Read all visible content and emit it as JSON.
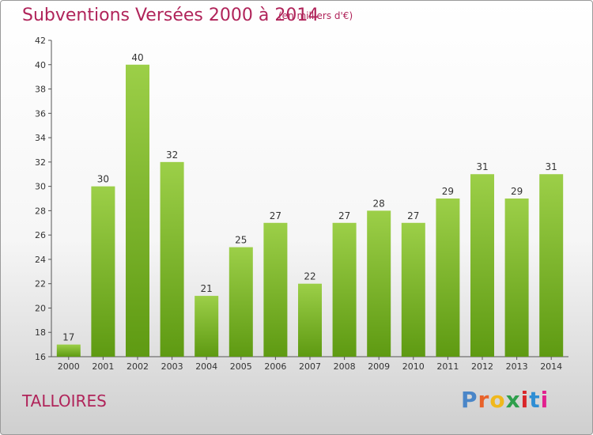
{
  "header": {
    "title": "Subventions Versées 2000 à 2014",
    "unit_note": "(en milliers d'€)"
  },
  "footer": {
    "town": "TALLOIRES",
    "brand": "Proxiti",
    "brand_colors": [
      "#4a86c8",
      "#e8622a",
      "#f0b81c",
      "#2e9f4c",
      "#d9252a",
      "#2f8ed4",
      "#e2208e"
    ]
  },
  "chart_data": {
    "type": "bar",
    "title": "Subventions Versées 2000 à 2014",
    "subtitle": "(en milliers d'€)",
    "xlabel": "",
    "ylabel": "",
    "categories": [
      "2000",
      "2001",
      "2002",
      "2003",
      "2004",
      "2005",
      "2006",
      "2007",
      "2008",
      "2009",
      "2010",
      "2011",
      "2012",
      "2013",
      "2014"
    ],
    "values": [
      17,
      30,
      40,
      32,
      21,
      25,
      27,
      22,
      27,
      28,
      27,
      29,
      31,
      29,
      31
    ],
    "ylim": [
      16,
      42
    ],
    "yticks": [
      16,
      18,
      20,
      22,
      24,
      26,
      28,
      30,
      32,
      34,
      36,
      38,
      40,
      42
    ],
    "grid": false,
    "bar_color_top": "#9ccf48",
    "bar_color_bottom": "#5e9a12"
  }
}
